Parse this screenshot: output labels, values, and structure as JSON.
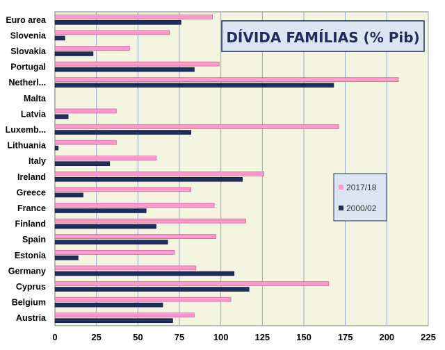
{
  "chart_data": {
    "type": "bar",
    "orientation": "horizontal",
    "title": "DÍVIDA  FAMÍLIAS  (% Pib)",
    "categories": [
      "Euro area",
      "Slovenia",
      "Slovakia",
      "Portugal",
      "Netherl...",
      "Malta",
      "Latvia",
      "Luxemb...",
      "Lithuania",
      "Italy",
      "Ireland",
      "Greece",
      "France",
      "Finland",
      "Spain",
      "Estonia",
      "Germany",
      "Cyprus",
      "Belgium",
      "Austria"
    ],
    "series": [
      {
        "name": "2017/18",
        "color": "#FF99CC",
        "values": [
          95,
          69,
          45,
          99,
          207,
          0,
          37,
          171,
          37,
          61,
          126,
          82,
          96,
          115,
          97,
          72,
          85,
          165,
          106,
          84
        ]
      },
      {
        "name": "2000/02",
        "color": "#1F2D5C",
        "values": [
          76,
          6,
          23,
          84,
          168,
          0,
          8,
          82,
          2,
          33,
          113,
          17,
          55,
          61,
          68,
          14,
          108,
          117,
          65,
          71
        ]
      }
    ],
    "xlim": [
      0,
      225
    ],
    "xticks": [
      0,
      25,
      50,
      75,
      100,
      125,
      150,
      175,
      200,
      225
    ],
    "grid": true,
    "legend_position": "right",
    "plot_background": "#F3F5E1",
    "gridline_color": "#93A7CA",
    "title_box_color": "#DCE6F2",
    "title_color": "#1F2D5C"
  }
}
